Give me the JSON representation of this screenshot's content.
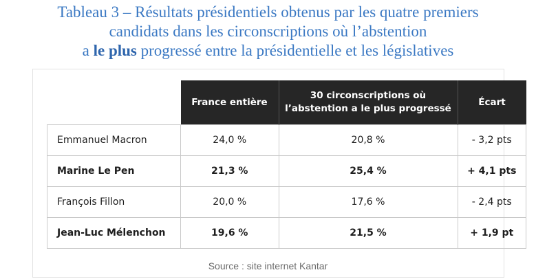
{
  "title": {
    "line1": "Tableau 3 – Résultats présidentiels obtenus par les quatre premiers",
    "line2": "candidats dans les circonscriptions où l’abstention",
    "line3_prefix": "a ",
    "line3_bold": "le plus",
    "line3_suffix": " progressé entre la présidentielle et les législatives"
  },
  "table": {
    "headers": [
      "France entière",
      "30 circonscriptions où l’abstention a le plus progressé",
      "Écart"
    ],
    "header_lines": {
      "col2_a": "30 circonscriptions où",
      "col2_b": "l’abstention a le plus progressé"
    },
    "rows": [
      {
        "name": "Emmanuel Macron",
        "france": "24,0 %",
        "circ": "20,8 %",
        "ecart": "- 3,2 pts",
        "bold": false
      },
      {
        "name": "Marine Le Pen",
        "france": "21,3 %",
        "circ": "25,4 %",
        "ecart": "+ 4,1 pts",
        "bold": true
      },
      {
        "name": "François Fillon",
        "france": "20,0 %",
        "circ": "17,6 %",
        "ecart": "- 2,4 pts",
        "bold": false
      },
      {
        "name": "Jean-Luc Mélenchon",
        "france": "19,6 %",
        "circ": "21,5 %",
        "ecart": "+ 1,9 pt",
        "bold": true
      }
    ]
  },
  "source": "Source : site internet Kantar",
  "colors": {
    "title": "#3a78c3",
    "header_bg": "#262626",
    "header_text": "#ffffff"
  }
}
